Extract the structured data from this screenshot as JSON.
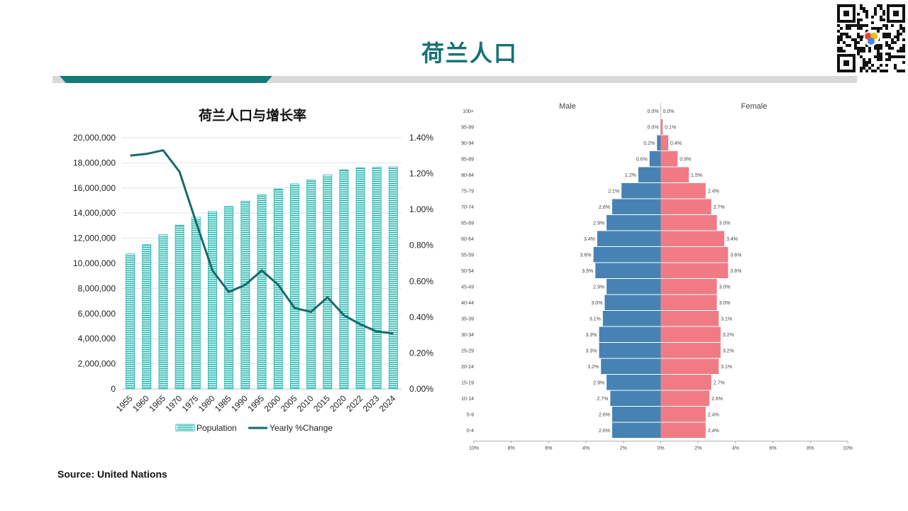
{
  "header": {
    "title": "荷兰人口"
  },
  "source": "Source: United Nations",
  "qr_code": {
    "icon": "qr-code-icon",
    "accent": "#4285f4"
  },
  "colors": {
    "teal": "#1fb3ae",
    "line": "#176a6a",
    "male": "#4682b4",
    "female": "#f07b85"
  },
  "chart_data": [
    {
      "type": "bar",
      "title": "荷兰人口与增长率",
      "categories": [
        "1955",
        "1960",
        "1965",
        "1970",
        "1975",
        "1980",
        "1985",
        "1990",
        "1995",
        "2000",
        "2005",
        "2010",
        "2015",
        "2020",
        "2022",
        "2023",
        "2024"
      ],
      "series": [
        {
          "name": "Population",
          "type": "bar",
          "axis": "left",
          "values": [
            10750000,
            11480000,
            12290000,
            13040000,
            13670000,
            14130000,
            14520000,
            14950000,
            15450000,
            15920000,
            16330000,
            16630000,
            17040000,
            17440000,
            17600000,
            17650000,
            17680000
          ]
        },
        {
          "name": "Yearly %Change",
          "type": "line",
          "axis": "right",
          "values": [
            1.3,
            1.31,
            1.33,
            1.21,
            0.93,
            0.66,
            0.54,
            0.58,
            0.66,
            0.58,
            0.45,
            0.43,
            0.51,
            0.41,
            0.36,
            0.32,
            0.31
          ]
        }
      ],
      "y_left": {
        "min": 0,
        "max": 20000000,
        "ticks": [
          "0",
          "2,000,000",
          "4,000,000",
          "6,000,000",
          "8,000,000",
          "10,000,000",
          "12,000,000",
          "14,000,000",
          "16,000,000",
          "18,000,000",
          "20,000,000"
        ]
      },
      "y_right": {
        "min": 0,
        "max": 1.4,
        "ticks": [
          "0.00%",
          "0.20%",
          "0.40%",
          "0.60%",
          "0.80%",
          "1.00%",
          "1.20%",
          "1.40%"
        ]
      },
      "grid": true,
      "legend": "bottom"
    },
    {
      "type": "bar",
      "subtype": "population-pyramid",
      "left_label": "Male",
      "right_label": "Female",
      "age_groups": [
        "100+",
        "95-99",
        "90-94",
        "85-89",
        "80-84",
        "75-79",
        "70-74",
        "65-69",
        "60-64",
        "55-59",
        "50-54",
        "45-49",
        "40-44",
        "35-39",
        "30-34",
        "25-29",
        "20-24",
        "15-19",
        "10-14",
        "5-9",
        "0-4"
      ],
      "male": [
        0.0,
        0.0,
        0.2,
        0.6,
        1.2,
        2.1,
        2.6,
        2.9,
        3.4,
        3.6,
        3.5,
        2.9,
        3.0,
        3.1,
        3.3,
        3.3,
        3.2,
        2.9,
        2.7,
        2.6,
        2.6
      ],
      "female": [
        0.0,
        0.1,
        0.4,
        0.9,
        1.5,
        2.4,
        2.7,
        3.0,
        3.4,
        3.6,
        3.6,
        3.0,
        3.0,
        3.1,
        3.2,
        3.2,
        3.1,
        2.7,
        2.6,
        2.4,
        2.4
      ],
      "x_ticks": [
        "10%",
        "8%",
        "6%",
        "4%",
        "2%",
        "0%",
        "2%",
        "4%",
        "6%",
        "8%",
        "10%"
      ],
      "xlim": [
        -10,
        10
      ]
    }
  ]
}
